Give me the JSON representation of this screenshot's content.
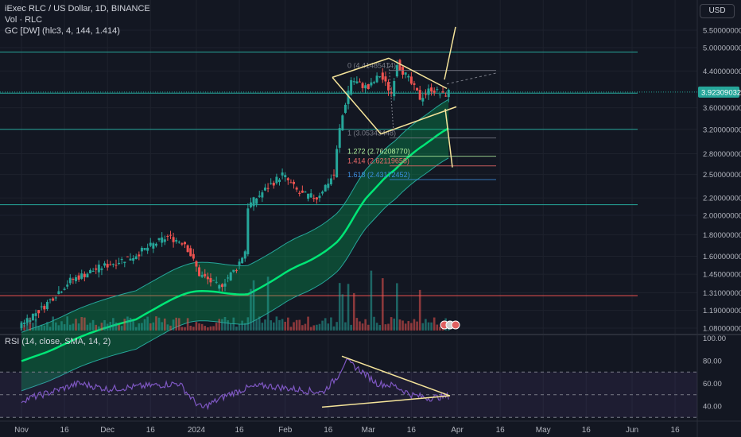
{
  "header": {
    "symbol_line": "iExec RLC / US Dollar, 1D, BINANCE",
    "volume_line": "Vol · RLC",
    "indicator_line": "GC [DW] (hlc3, 4, 144, 1.414)",
    "currency_button": "USD"
  },
  "rsi_legend": "RSI (14, close, SMA, 14, 2)",
  "chart_data": [
    {
      "type": "candlestick",
      "title": "iExec RLC / US Dollar, 1D, BINANCE",
      "y_scale": "log",
      "ylim": [
        1.0,
        6.0
      ],
      "y_ticks": [
        5.5,
        5.0,
        4.4,
        3.6,
        3.2,
        2.8,
        2.5,
        2.2,
        2.0,
        1.8,
        1.6,
        1.45,
        1.31,
        1.19,
        1.08
      ],
      "y_tick_labels": [
        "5.50000000",
        "5.00000000",
        "4.40000000",
        "3.60000000",
        "3.20000000",
        "2.80000000",
        "2.50000000",
        "2.20000000",
        "2.00000000",
        "1.80000000",
        "1.60000000",
        "1.45000000",
        "1.31000000",
        "1.19000000",
        "1.08000000"
      ],
      "last_price": 3.92309032,
      "last_price_label": "3.92309032",
      "x_tick_labels": [
        "Nov",
        "16",
        "Dec",
        "16",
        "2024",
        "16",
        "Feb",
        "16",
        "Mar",
        "16",
        "Apr",
        "16",
        "May",
        "16",
        "Jun",
        "16"
      ],
      "x_tick_days": [
        0,
        15,
        30,
        45,
        61,
        76,
        92,
        107,
        121,
        136,
        152,
        167,
        182,
        197,
        213,
        228
      ],
      "horizontal_levels": [
        {
          "price": 4.88,
          "color": "#26a69a"
        },
        {
          "price": 3.9,
          "color": "#26a69a"
        },
        {
          "price": 3.2,
          "color": "#26a69a"
        },
        {
          "price": 2.12,
          "color": "#26a69a"
        },
        {
          "price": 1.29,
          "color": "#ef5350"
        }
      ],
      "fibonacci": [
        {
          "label": "0 (4.41485414)",
          "price": 4.41485414,
          "color": "#787b86"
        },
        {
          "label": "1 (3.05343448)",
          "price": 3.05343448,
          "color": "#787b86"
        },
        {
          "label": "1.272 (2.76208770)",
          "price": 2.7620877,
          "color": "#b2f2a0"
        },
        {
          "label": "1.414 (2.62119658)",
          "price": 2.62119658,
          "color": "#f06b6b"
        },
        {
          "label": "1.618 (2.43172452)",
          "price": 2.43172452,
          "color": "#3d8fe0"
        }
      ],
      "series": [
        {
          "name": "GC [DW]",
          "type": "band",
          "color": "#00e676"
        }
      ]
    },
    {
      "type": "line",
      "title": "RSI (14, close, SMA, 14, 2)",
      "ylim": [
        30,
        100
      ],
      "y_ticks": [
        100,
        80,
        60,
        40
      ],
      "y_tick_labels": [
        "100.00",
        "80.00",
        "60.00",
        "40.00"
      ],
      "levels": [
        70,
        50,
        30
      ]
    }
  ]
}
